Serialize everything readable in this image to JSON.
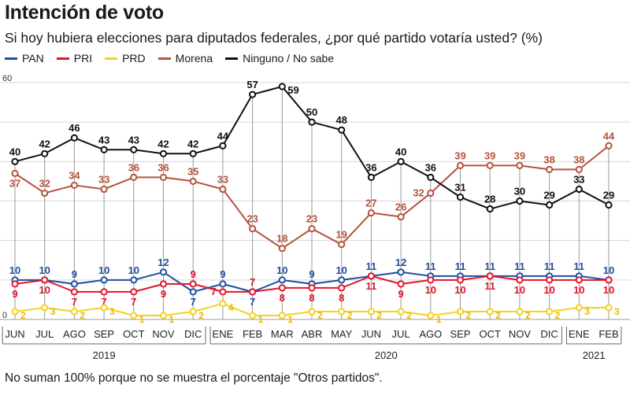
{
  "title": "Intención de voto",
  "subtitle": "Si hoy hubiera elecciones para diputados federales, ¿por qué partido votaría usted? (%)",
  "footnote": "No suman 100% porque no se muestra el porcentaje \"Otros partidos\".",
  "chart_data": {
    "type": "line",
    "ylim": [
      0,
      60
    ],
    "y_ticks": [
      0,
      60
    ],
    "grid": true,
    "legend_position": "top-left",
    "categories": [
      "JUN",
      "JUL",
      "AGO",
      "SEP",
      "OCT",
      "NOV",
      "DIC",
      "ENE",
      "FEB",
      "MAR",
      "ABR",
      "MAY",
      "JUN",
      "JUL",
      "AGO",
      "SEP",
      "OCT",
      "NOV",
      "DIC",
      "ENE",
      "FEB"
    ],
    "years": [
      {
        "label": "2019",
        "start": 0,
        "end": 6
      },
      {
        "label": "2020",
        "start": 7,
        "end": 18
      },
      {
        "label": "2021",
        "start": 19,
        "end": 20
      }
    ],
    "series": [
      {
        "name": "PAN",
        "color": "#1f4e9c",
        "label_side": "above",
        "values": [
          10,
          10,
          9,
          10,
          10,
          12,
          7,
          9,
          7,
          10,
          9,
          10,
          11,
          12,
          11,
          11,
          11,
          11,
          11,
          11,
          10
        ],
        "label_overrides": {
          "6": "below",
          "8": "below"
        }
      },
      {
        "name": "PRI",
        "color": "#e0162b",
        "label_side": "below",
        "values": [
          9,
          10,
          7,
          7,
          7,
          9,
          9,
          7,
          7,
          8,
          8,
          8,
          11,
          9,
          10,
          10,
          11,
          10,
          10,
          10,
          10
        ],
        "label_overrides": {
          "6": "above",
          "7": "left",
          "8": "above"
        }
      },
      {
        "name": "PRD",
        "color": "#f4d21c",
        "label_side": "right",
        "values": [
          2,
          3,
          2,
          3,
          1,
          1,
          2,
          4,
          1,
          1,
          2,
          2,
          2,
          2,
          1,
          2,
          2,
          2,
          2,
          3,
          3
        ],
        "label_overrides": {}
      },
      {
        "name": "Morena",
        "color": "#b5533c",
        "label_side": "above",
        "values": [
          37,
          32,
          34,
          33,
          36,
          36,
          35,
          33,
          23,
          18,
          23,
          19,
          27,
          26,
          32,
          39,
          39,
          39,
          38,
          38,
          44
        ],
        "label_overrides": {
          "0": "below",
          "12": "above",
          "13": "above",
          "14": "left"
        }
      },
      {
        "name": "Ninguno / No sabe",
        "color": "#111111",
        "label_side": "above",
        "values": [
          40,
          42,
          46,
          43,
          43,
          42,
          42,
          44,
          57,
          59,
          50,
          48,
          36,
          40,
          36,
          31,
          28,
          30,
          29,
          33,
          29
        ],
        "label_overrides": {
          "8": "above",
          "9": "right",
          "10": "above",
          "11": "above",
          "15": "above",
          "16": "above",
          "17": "above",
          "18": "above",
          "19": "above",
          "20": "above"
        }
      }
    ]
  }
}
